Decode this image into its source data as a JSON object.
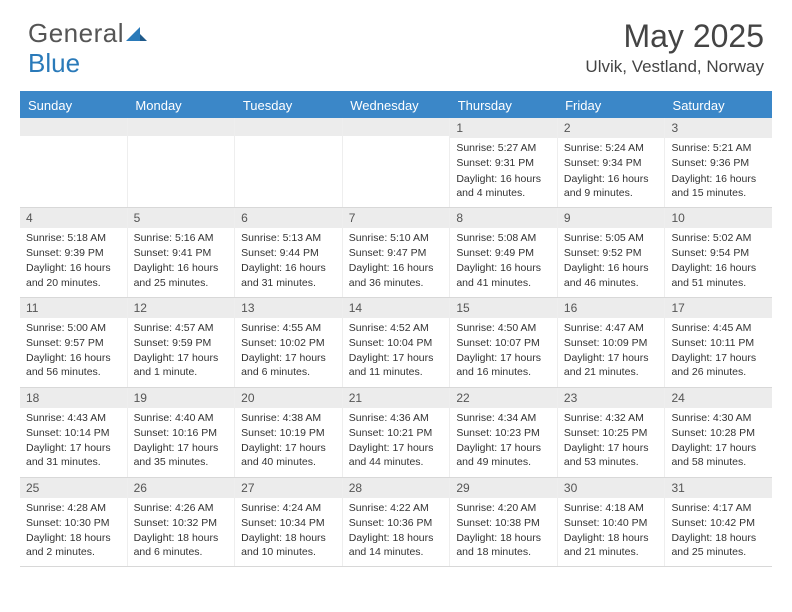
{
  "logo": {
    "text1": "General",
    "text2": "Blue"
  },
  "title": "May 2025",
  "location": "Ulvik, Vestland, Norway",
  "header_color": "#3b87c8",
  "weekdays": [
    "Sunday",
    "Monday",
    "Tuesday",
    "Wednesday",
    "Thursday",
    "Friday",
    "Saturday"
  ],
  "weeks": [
    [
      {
        "n": "",
        "sr": "",
        "ss": "",
        "dl": ""
      },
      {
        "n": "",
        "sr": "",
        "ss": "",
        "dl": ""
      },
      {
        "n": "",
        "sr": "",
        "ss": "",
        "dl": ""
      },
      {
        "n": "",
        "sr": "",
        "ss": "",
        "dl": ""
      },
      {
        "n": "1",
        "sr": "Sunrise: 5:27 AM",
        "ss": "Sunset: 9:31 PM",
        "dl": "Daylight: 16 hours and 4 minutes."
      },
      {
        "n": "2",
        "sr": "Sunrise: 5:24 AM",
        "ss": "Sunset: 9:34 PM",
        "dl": "Daylight: 16 hours and 9 minutes."
      },
      {
        "n": "3",
        "sr": "Sunrise: 5:21 AM",
        "ss": "Sunset: 9:36 PM",
        "dl": "Daylight: 16 hours and 15 minutes."
      }
    ],
    [
      {
        "n": "4",
        "sr": "Sunrise: 5:18 AM",
        "ss": "Sunset: 9:39 PM",
        "dl": "Daylight: 16 hours and 20 minutes."
      },
      {
        "n": "5",
        "sr": "Sunrise: 5:16 AM",
        "ss": "Sunset: 9:41 PM",
        "dl": "Daylight: 16 hours and 25 minutes."
      },
      {
        "n": "6",
        "sr": "Sunrise: 5:13 AM",
        "ss": "Sunset: 9:44 PM",
        "dl": "Daylight: 16 hours and 31 minutes."
      },
      {
        "n": "7",
        "sr": "Sunrise: 5:10 AM",
        "ss": "Sunset: 9:47 PM",
        "dl": "Daylight: 16 hours and 36 minutes."
      },
      {
        "n": "8",
        "sr": "Sunrise: 5:08 AM",
        "ss": "Sunset: 9:49 PM",
        "dl": "Daylight: 16 hours and 41 minutes."
      },
      {
        "n": "9",
        "sr": "Sunrise: 5:05 AM",
        "ss": "Sunset: 9:52 PM",
        "dl": "Daylight: 16 hours and 46 minutes."
      },
      {
        "n": "10",
        "sr": "Sunrise: 5:02 AM",
        "ss": "Sunset: 9:54 PM",
        "dl": "Daylight: 16 hours and 51 minutes."
      }
    ],
    [
      {
        "n": "11",
        "sr": "Sunrise: 5:00 AM",
        "ss": "Sunset: 9:57 PM",
        "dl": "Daylight: 16 hours and 56 minutes."
      },
      {
        "n": "12",
        "sr": "Sunrise: 4:57 AM",
        "ss": "Sunset: 9:59 PM",
        "dl": "Daylight: 17 hours and 1 minute."
      },
      {
        "n": "13",
        "sr": "Sunrise: 4:55 AM",
        "ss": "Sunset: 10:02 PM",
        "dl": "Daylight: 17 hours and 6 minutes."
      },
      {
        "n": "14",
        "sr": "Sunrise: 4:52 AM",
        "ss": "Sunset: 10:04 PM",
        "dl": "Daylight: 17 hours and 11 minutes."
      },
      {
        "n": "15",
        "sr": "Sunrise: 4:50 AM",
        "ss": "Sunset: 10:07 PM",
        "dl": "Daylight: 17 hours and 16 minutes."
      },
      {
        "n": "16",
        "sr": "Sunrise: 4:47 AM",
        "ss": "Sunset: 10:09 PM",
        "dl": "Daylight: 17 hours and 21 minutes."
      },
      {
        "n": "17",
        "sr": "Sunrise: 4:45 AM",
        "ss": "Sunset: 10:11 PM",
        "dl": "Daylight: 17 hours and 26 minutes."
      }
    ],
    [
      {
        "n": "18",
        "sr": "Sunrise: 4:43 AM",
        "ss": "Sunset: 10:14 PM",
        "dl": "Daylight: 17 hours and 31 minutes."
      },
      {
        "n": "19",
        "sr": "Sunrise: 4:40 AM",
        "ss": "Sunset: 10:16 PM",
        "dl": "Daylight: 17 hours and 35 minutes."
      },
      {
        "n": "20",
        "sr": "Sunrise: 4:38 AM",
        "ss": "Sunset: 10:19 PM",
        "dl": "Daylight: 17 hours and 40 minutes."
      },
      {
        "n": "21",
        "sr": "Sunrise: 4:36 AM",
        "ss": "Sunset: 10:21 PM",
        "dl": "Daylight: 17 hours and 44 minutes."
      },
      {
        "n": "22",
        "sr": "Sunrise: 4:34 AM",
        "ss": "Sunset: 10:23 PM",
        "dl": "Daylight: 17 hours and 49 minutes."
      },
      {
        "n": "23",
        "sr": "Sunrise: 4:32 AM",
        "ss": "Sunset: 10:25 PM",
        "dl": "Daylight: 17 hours and 53 minutes."
      },
      {
        "n": "24",
        "sr": "Sunrise: 4:30 AM",
        "ss": "Sunset: 10:28 PM",
        "dl": "Daylight: 17 hours and 58 minutes."
      }
    ],
    [
      {
        "n": "25",
        "sr": "Sunrise: 4:28 AM",
        "ss": "Sunset: 10:30 PM",
        "dl": "Daylight: 18 hours and 2 minutes."
      },
      {
        "n": "26",
        "sr": "Sunrise: 4:26 AM",
        "ss": "Sunset: 10:32 PM",
        "dl": "Daylight: 18 hours and 6 minutes."
      },
      {
        "n": "27",
        "sr": "Sunrise: 4:24 AM",
        "ss": "Sunset: 10:34 PM",
        "dl": "Daylight: 18 hours and 10 minutes."
      },
      {
        "n": "28",
        "sr": "Sunrise: 4:22 AM",
        "ss": "Sunset: 10:36 PM",
        "dl": "Daylight: 18 hours and 14 minutes."
      },
      {
        "n": "29",
        "sr": "Sunrise: 4:20 AM",
        "ss": "Sunset: 10:38 PM",
        "dl": "Daylight: 18 hours and 18 minutes."
      },
      {
        "n": "30",
        "sr": "Sunrise: 4:18 AM",
        "ss": "Sunset: 10:40 PM",
        "dl": "Daylight: 18 hours and 21 minutes."
      },
      {
        "n": "31",
        "sr": "Sunrise: 4:17 AM",
        "ss": "Sunset: 10:42 PM",
        "dl": "Daylight: 18 hours and 25 minutes."
      }
    ]
  ]
}
